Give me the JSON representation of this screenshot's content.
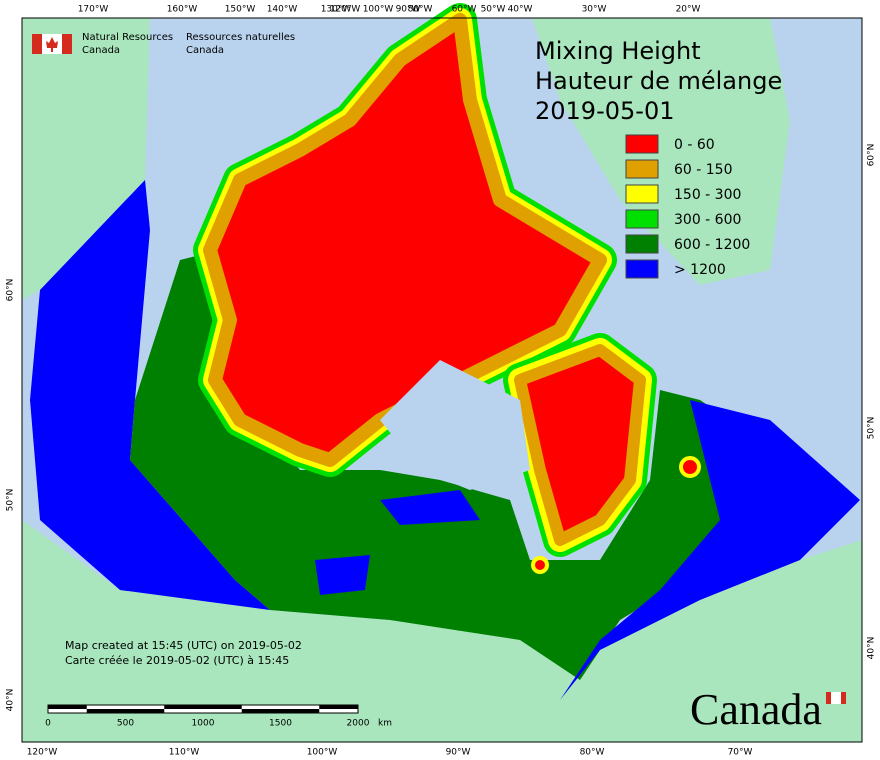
{
  "header": {
    "agency_en": [
      "Natural Resources",
      "Canada"
    ],
    "agency_fr": [
      "Ressources naturelles",
      "Canada"
    ]
  },
  "title": [
    "Mixing Height",
    "Hauteur de mélange",
    "2019-05-01"
  ],
  "legend": [
    {
      "label": "0 - 60",
      "color": "#ff0000"
    },
    {
      "label": "60 - 150",
      "color": "#e0a000"
    },
    {
      "label": "150 - 300",
      "color": "#ffff00"
    },
    {
      "label": "300 - 600",
      "color": "#00e000"
    },
    {
      "label": "600 - 1200",
      "color": "#008000"
    },
    {
      "label": "> 1200",
      "color": "#0000ff"
    }
  ],
  "top_longitude_labels": [
    "170°W",
    "160°W",
    "150°W",
    "140°W",
    "130°W",
    "120°W",
    "100°W",
    "90°W",
    "80°W",
    "60°W",
    "50°W",
    "40°W",
    "30°W",
    "20°W"
  ],
  "bottom_longitude_labels": [
    "120°W",
    "110°W",
    "100°W",
    "90°W",
    "80°W",
    "70°W"
  ],
  "left_latitude_labels": [
    "60°N",
    "50°N",
    "40°N"
  ],
  "right_latitude_labels": [
    "60°N",
    "50°N",
    "40°N"
  ],
  "notes": [
    "Map created at 15:45 (UTC) on 2019-05-02",
    "Carte créée le 2019-05-02 (UTC) à 15:45"
  ],
  "scale_bar": {
    "labels": [
      0,
      500,
      1000,
      1500,
      2000
    ],
    "unit": "km"
  },
  "wordmark": "Canada"
}
